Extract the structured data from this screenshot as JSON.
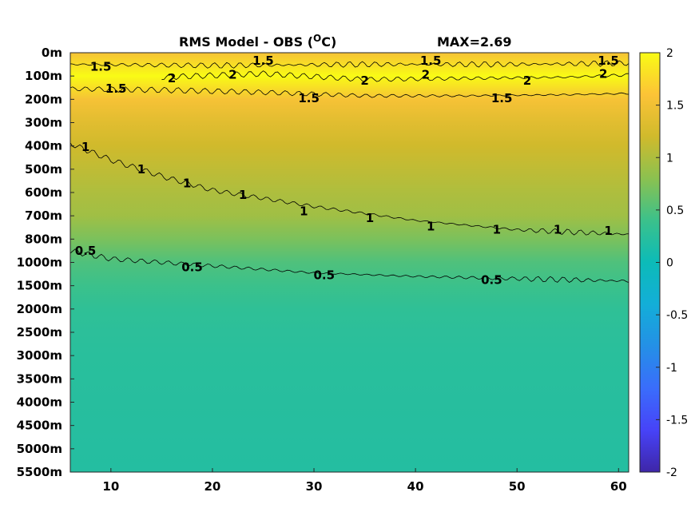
{
  "chart_data": {
    "type": "heatmap",
    "title": "RMS Model - OBS (",
    "title_unit_sup": "O",
    "title_unit_suffix": "C)",
    "max_label": "MAX=2.69",
    "xlim": [
      6,
      61
    ],
    "x_ticks": [
      {
        "value": 10,
        "label": "10"
      },
      {
        "value": 20,
        "label": "20"
      },
      {
        "value": 30,
        "label": "30"
      },
      {
        "value": 40,
        "label": "40"
      },
      {
        "value": 50,
        "label": "50"
      },
      {
        "value": 60,
        "label": "60"
      }
    ],
    "y_ticks": [
      "0m",
      "100m",
      "200m",
      "300m",
      "400m",
      "500m",
      "600m",
      "700m",
      "800m",
      "1000m",
      "1500m",
      "2000m",
      "2500m",
      "3000m",
      "3500m",
      "4000m",
      "4500m",
      "5000m",
      "5500m"
    ],
    "colorbar": {
      "range": [
        -2,
        2
      ],
      "ticks": [
        {
          "value": 2,
          "label": "2"
        },
        {
          "value": 1.5,
          "label": "1.5"
        },
        {
          "value": 1,
          "label": "1"
        },
        {
          "value": 0.5,
          "label": "0.5"
        },
        {
          "value": 0,
          "label": "0"
        },
        {
          "value": -0.5,
          "label": "-0.5"
        },
        {
          "value": -1,
          "label": "-1"
        },
        {
          "value": -1.5,
          "label": "-1.5"
        },
        {
          "value": -2,
          "label": "-2"
        }
      ]
    },
    "depth_profile": [
      {
        "level": 0,
        "rms": 1.55
      },
      {
        "level": 1,
        "rms": 2.0
      },
      {
        "level": 2,
        "rms": 1.55
      },
      {
        "level": 3,
        "rms": 1.35
      },
      {
        "level": 4,
        "rms": 1.2
      },
      {
        "level": 5,
        "rms": 1.1
      },
      {
        "level": 6,
        "rms": 1.0
      },
      {
        "level": 7,
        "rms": 0.92
      },
      {
        "level": 8,
        "rms": 0.72
      },
      {
        "level": 9,
        "rms": 0.5
      },
      {
        "level": 10,
        "rms": 0.4
      },
      {
        "level": 11,
        "rms": 0.3
      },
      {
        "level": 12,
        "rms": 0.27
      },
      {
        "level": 13,
        "rms": 0.25
      },
      {
        "level": 14,
        "rms": 0.24
      },
      {
        "level": 15,
        "rms": 0.23
      },
      {
        "level": 16,
        "rms": 0.22
      },
      {
        "level": 17,
        "rms": 0.21
      },
      {
        "level": 18,
        "rms": 0.2
      }
    ],
    "contours": [
      {
        "value": 1.5,
        "label": "1.5",
        "points": [
          [
            6,
            0.5
          ],
          [
            20,
            0.55
          ],
          [
            35,
            0.5
          ],
          [
            50,
            0.5
          ],
          [
            61,
            0.45
          ]
        ]
      },
      {
        "value": 2,
        "label": "2",
        "points": [
          [
            15,
            1.05
          ],
          [
            25,
            0.9
          ],
          [
            35,
            1.15
          ],
          [
            45,
            1.1
          ],
          [
            55,
            1.05
          ],
          [
            61,
            0.95
          ]
        ]
      },
      {
        "value": 1.5,
        "label": "1.5",
        "points": [
          [
            6,
            1.55
          ],
          [
            15,
            1.6
          ],
          [
            25,
            1.7
          ],
          [
            35,
            1.85
          ],
          [
            45,
            1.85
          ],
          [
            55,
            1.8
          ],
          [
            61,
            1.75
          ]
        ]
      },
      {
        "value": 1,
        "label": "1",
        "points": [
          [
            6,
            3.9
          ],
          [
            10,
            4.6
          ],
          [
            15,
            5.3
          ],
          [
            20,
            5.9
          ],
          [
            30,
            6.6
          ],
          [
            40,
            7.2
          ],
          [
            50,
            7.6
          ],
          [
            61,
            7.8
          ]
        ]
      },
      {
        "value": 0.5,
        "label": "0.5",
        "points": [
          [
            6,
            8.5
          ],
          [
            10,
            8.85
          ],
          [
            20,
            9.15
          ],
          [
            30,
            9.45
          ],
          [
            40,
            9.6
          ],
          [
            50,
            9.7
          ],
          [
            61,
            9.8
          ]
        ]
      }
    ],
    "contour_labels": [
      {
        "label": "1.5",
        "x": 9,
        "level": 0.6
      },
      {
        "label": "1.5",
        "x": 25,
        "level": 0.35
      },
      {
        "label": "1.5",
        "x": 41.5,
        "level": 0.35
      },
      {
        "label": "1.5",
        "x": 59,
        "level": 0.35
      },
      {
        "label": "2",
        "x": 16,
        "level": 1.1
      },
      {
        "label": "2",
        "x": 22,
        "level": 0.95
      },
      {
        "label": "2",
        "x": 35,
        "level": 1.2
      },
      {
        "label": "2",
        "x": 41,
        "level": 0.95
      },
      {
        "label": "2",
        "x": 51,
        "level": 1.2
      },
      {
        "label": "2",
        "x": 58.5,
        "level": 0.9
      },
      {
        "label": "1.5",
        "x": 10.5,
        "level": 1.55
      },
      {
        "label": "1.5",
        "x": 29.5,
        "level": 1.95
      },
      {
        "label": "1.5",
        "x": 48.5,
        "level": 1.95
      },
      {
        "label": "1",
        "x": 7.5,
        "level": 4.05
      },
      {
        "label": "1",
        "x": 13,
        "level": 5.0
      },
      {
        "label": "1",
        "x": 17.5,
        "level": 5.6
      },
      {
        "label": "1",
        "x": 23,
        "level": 6.1
      },
      {
        "label": "1",
        "x": 29,
        "level": 6.8
      },
      {
        "label": "1",
        "x": 35.5,
        "level": 7.1
      },
      {
        "label": "1",
        "x": 41.5,
        "level": 7.45
      },
      {
        "label": "1",
        "x": 48,
        "level": 7.6
      },
      {
        "label": "1",
        "x": 54,
        "level": 7.6
      },
      {
        "label": "1",
        "x": 59,
        "level": 7.65
      },
      {
        "label": "0.5",
        "x": 7.5,
        "level": 8.5
      },
      {
        "label": "0.5",
        "x": 18,
        "level": 9.2
      },
      {
        "label": "0.5",
        "x": 31,
        "level": 9.55
      },
      {
        "label": "0.5",
        "x": 47.5,
        "level": 9.75
      }
    ]
  }
}
